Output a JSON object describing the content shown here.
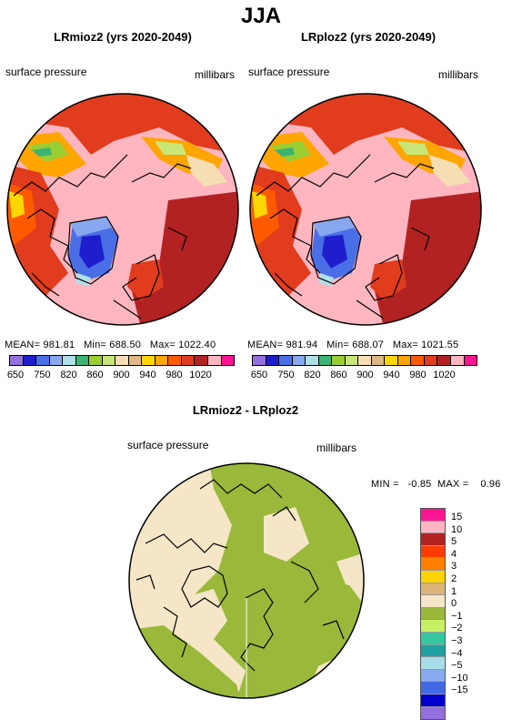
{
  "title": "JJA",
  "panels": [
    {
      "title": "LRmioz2 (yrs 2020-2049)",
      "left_label": "surface pressure",
      "right_label": "millibars",
      "stats": "MEAN= 981.81   Min= 688.50   Max= 1022.40"
    },
    {
      "title": "LRploz2 (yrs 2020-2049)",
      "left_label": "surface pressure",
      "right_label": "millibars",
      "stats": "MEAN= 981.94   Min= 688.07   Max= 1021.55"
    }
  ],
  "colorbar_top": {
    "colors": [
      "#9370db",
      "#1e1ecd",
      "#4a6ee6",
      "#87a8ee",
      "#afe0e8",
      "#3cb371",
      "#9acd32",
      "#c8e678",
      "#f5deb3",
      "#deb887",
      "#ffd700",
      "#ffa500",
      "#ff5a00",
      "#e13c1e",
      "#b22222",
      "#ffb6c1",
      "#ff1493"
    ],
    "ticks": [
      "650",
      "750",
      "820",
      "860",
      "900",
      "940",
      "980",
      "1020"
    ]
  },
  "diff": {
    "title": "LRmioz2 - LRploz2",
    "left_label": "surface pressure",
    "right_label": "millibars",
    "stats": "MIN =   -0.85  MAX =    0.96",
    "legend_colors": [
      "#ff1493",
      "#ffb6c1",
      "#b22222",
      "#ff3c00",
      "#ff7f00",
      "#ffd200",
      "#dcb478",
      "#f5e6c8",
      "#9ab93a",
      "#c8f064",
      "#32c8a0",
      "#1ea0a0",
      "#a8dce6",
      "#87aaf0",
      "#4169e1",
      "#0000cd",
      "#9370db"
    ],
    "legend_labels": [
      "15",
      "10",
      "5",
      "4",
      "3",
      "2",
      "1",
      "0",
      "−1",
      "−2",
      "−3",
      "−4",
      "−5",
      "−10",
      "−15"
    ]
  }
}
